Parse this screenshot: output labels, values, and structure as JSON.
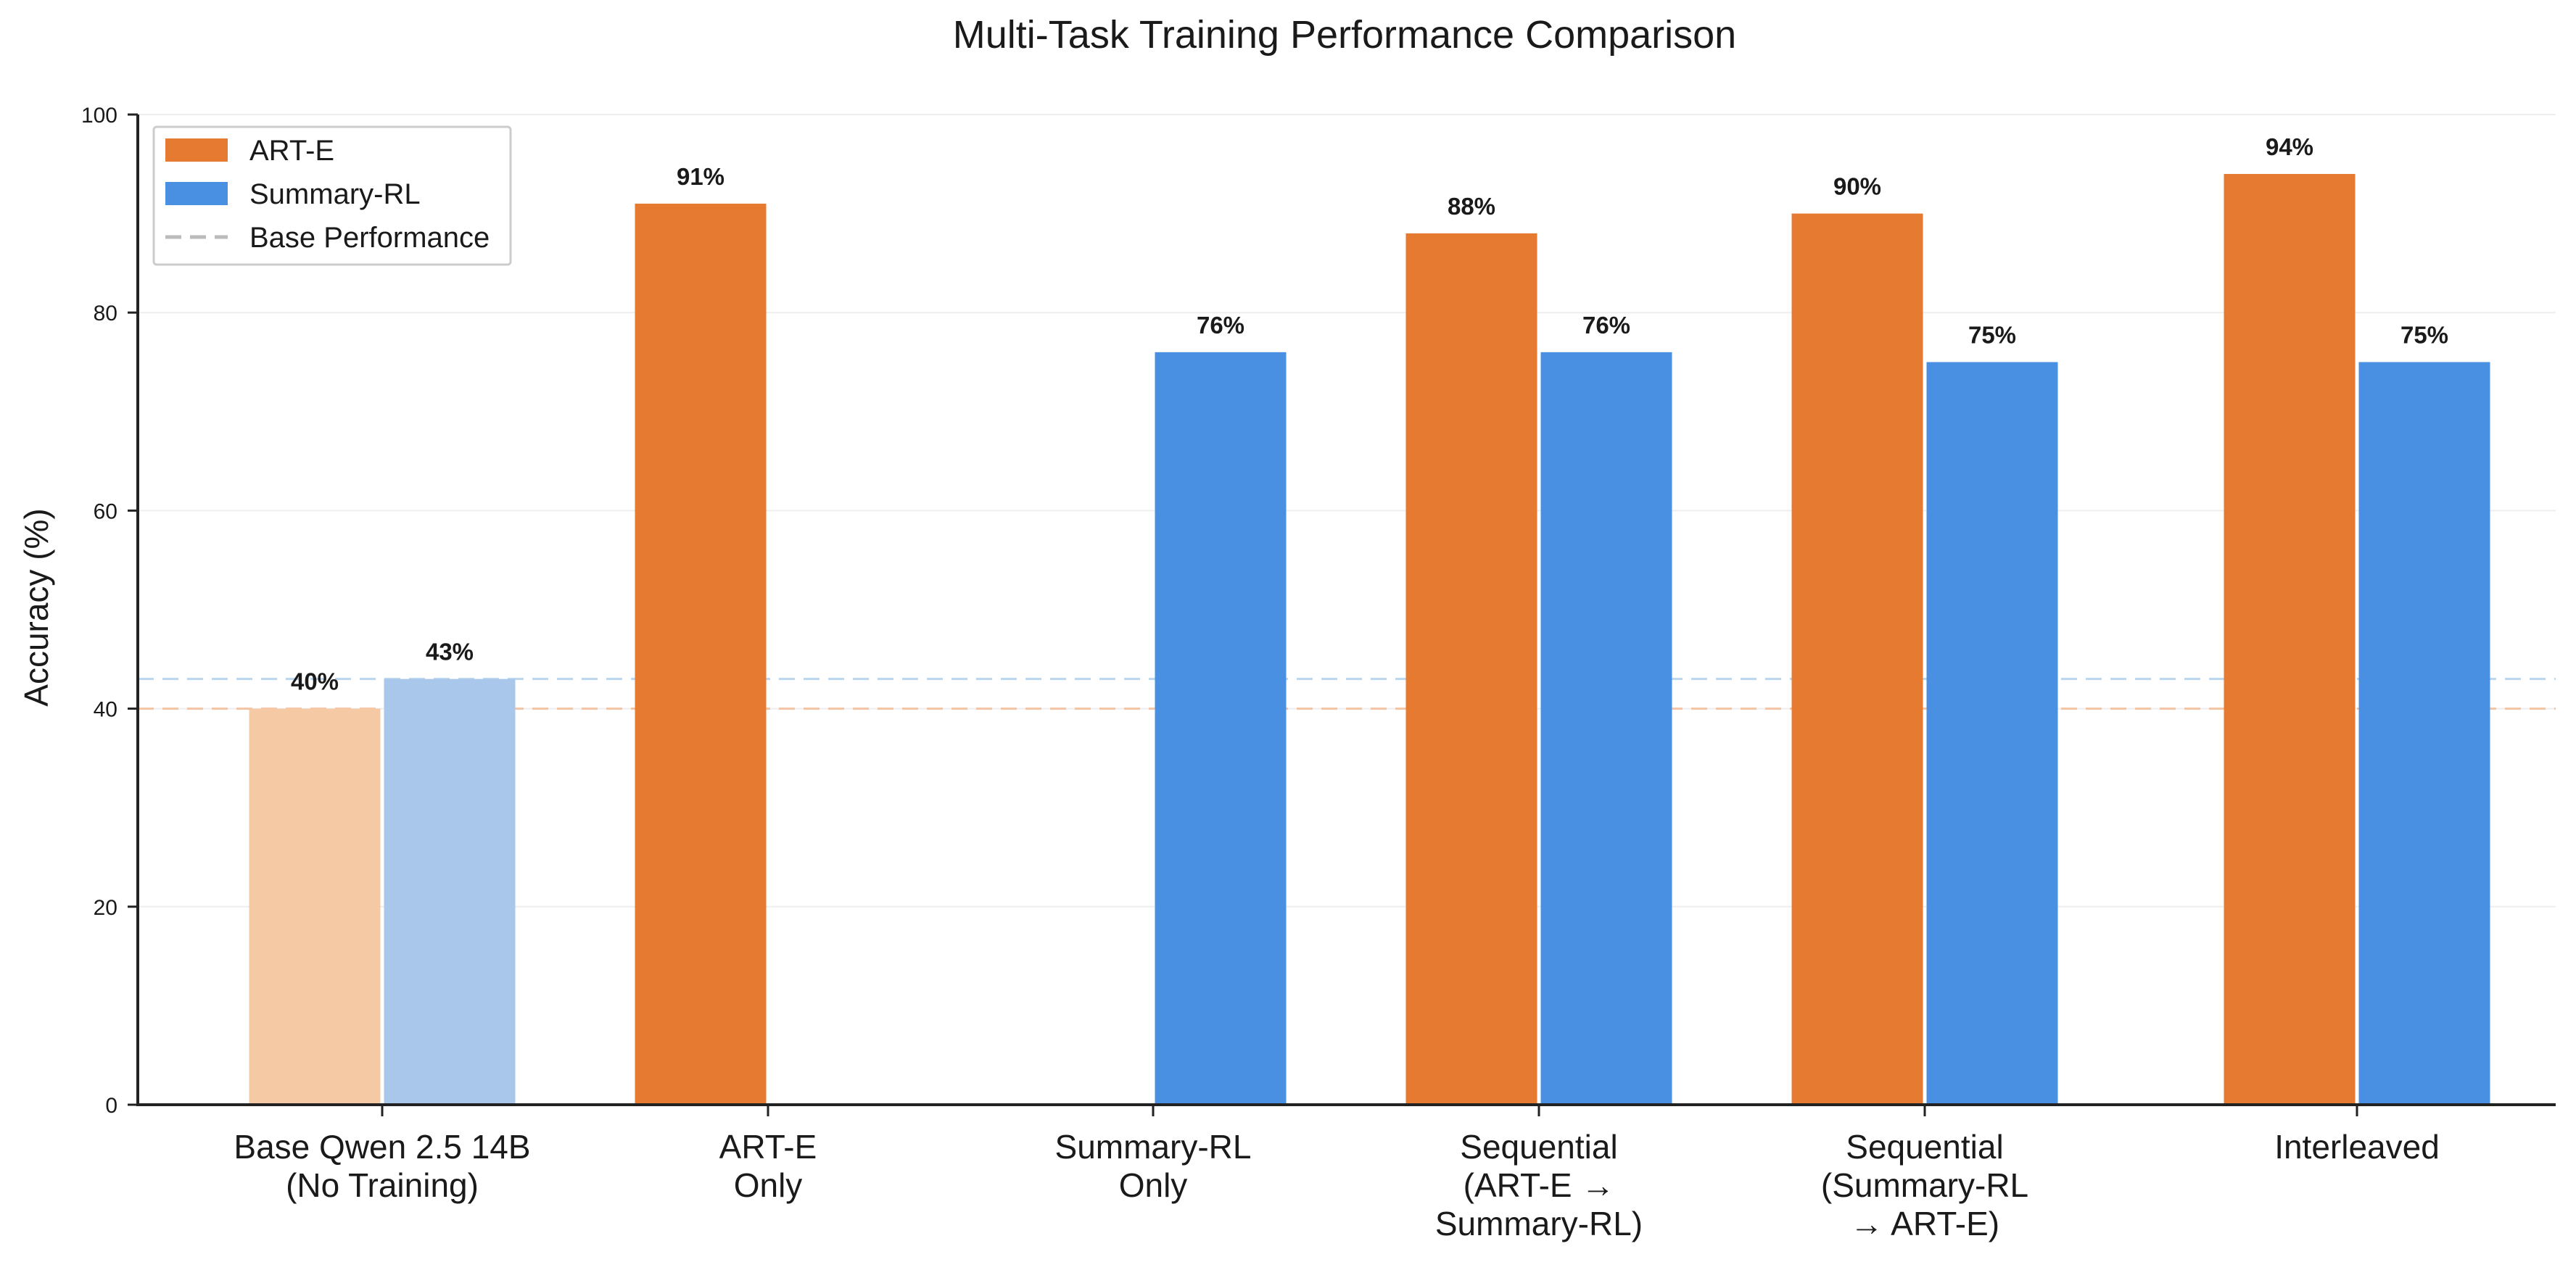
{
  "chart_data": {
    "type": "bar",
    "title": "Multi-Task Training Performance Comparison",
    "xlabel": "",
    "ylabel": "Accuracy (%)",
    "ylim": [
      0,
      100
    ],
    "yticks": [
      "0",
      "20",
      "40",
      "60",
      "80",
      "100"
    ],
    "grid": true,
    "legend_position": "top-left",
    "categories": [
      [
        "Base Qwen 2.5 14B",
        "(No Training)"
      ],
      [
        "ART-E",
        "Only"
      ],
      [
        "Summary-RL",
        "Only"
      ],
      [
        "Sequential",
        "(ART-E →",
        "Summary-RL)"
      ],
      [
        "Sequential",
        "(Summary-RL",
        "→ ART-E)"
      ],
      [
        "Interleaved"
      ]
    ],
    "series": [
      {
        "name": "ART-E",
        "color": "#E67A30",
        "faded_color": "#F5C9A4",
        "values": [
          40,
          91,
          null,
          88,
          90,
          94
        ],
        "labels": [
          "40%",
          "91%",
          "",
          "88%",
          "90%",
          "94%"
        ]
      },
      {
        "name": "Summary-RL",
        "color": "#4A90E2",
        "faded_color": "#A8C7EA",
        "values": [
          43,
          null,
          76,
          76,
          75,
          75
        ],
        "labels": [
          "43%",
          "",
          "76%",
          "76%",
          "75%",
          "75%"
        ]
      }
    ],
    "faded_category": 0,
    "reference_lines": [
      {
        "name": "Base Performance",
        "series": "ART-E",
        "value": 40,
        "color": "#F2C4A3"
      },
      {
        "name": "Base Performance",
        "series": "Summary-RL",
        "value": 43,
        "color": "#B9D6EE"
      }
    ],
    "legend": [
      {
        "label": "ART-E",
        "kind": "patch",
        "color": "#E67A30"
      },
      {
        "label": "Summary-RL",
        "kind": "patch",
        "color": "#4A90E2"
      },
      {
        "label": "Base Performance",
        "kind": "dashed",
        "color": "#BBBBBB"
      }
    ]
  }
}
